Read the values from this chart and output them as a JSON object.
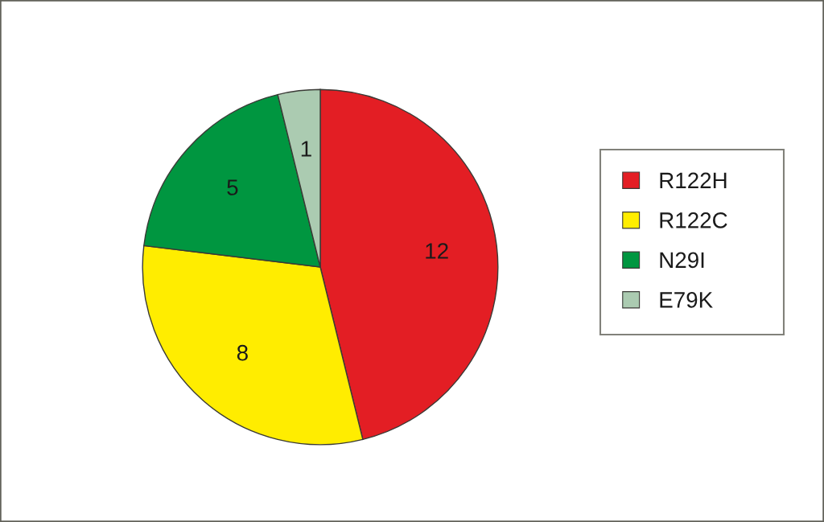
{
  "chart_data": {
    "type": "pie",
    "categories": [
      "R122H",
      "R122C",
      "N29I",
      "E79K"
    ],
    "values": [
      12,
      8,
      5,
      1
    ],
    "colors": [
      "#e31e24",
      "#ffed00",
      "#009640",
      "#abcbb1"
    ],
    "data_labels": true,
    "legend": "right"
  }
}
